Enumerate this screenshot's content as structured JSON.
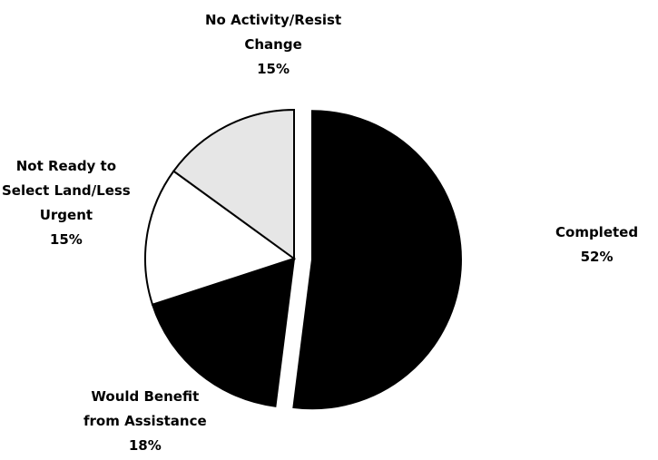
{
  "chart_data": {
    "type": "pie",
    "title": "",
    "slices": [
      {
        "label": "Completed",
        "label_lines": [
          "Completed"
        ],
        "percent_text": "52%",
        "value": 52,
        "color": "#000000",
        "exploded": true
      },
      {
        "label": "Would Benefit from Assistance",
        "label_lines": [
          "Would Benefit",
          "from Assistance"
        ],
        "percent_text": "18%",
        "value": 18,
        "color": "#000000",
        "exploded": false
      },
      {
        "label": "Not Ready to Select Land/Less Urgent",
        "label_lines": [
          "Not Ready to",
          "Select Land/Less",
          "Urgent"
        ],
        "percent_text": "15%",
        "value": 15,
        "color": "#ffffff",
        "exploded": false
      },
      {
        "label": "No Activity/Resist Change",
        "label_lines": [
          "No Activity/Resist",
          "Change"
        ],
        "percent_text": "15%",
        "value": 15,
        "color": "#e6e6e6",
        "exploded": false
      }
    ],
    "start_angle_deg": 0,
    "direction": "clockwise",
    "legend": "none",
    "slice_outline_color": "#000000"
  }
}
